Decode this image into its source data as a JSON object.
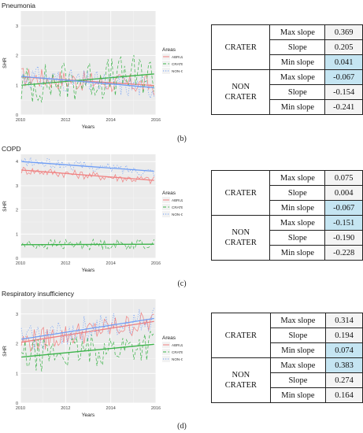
{
  "chart_data": [
    {
      "type": "line",
      "title": "Pneumonia",
      "xlabel": "Years",
      "ylabel": "SHR",
      "xlim": [
        2010,
        2016
      ],
      "ylim": [
        0,
        3.5
      ],
      "xticks": [
        2010,
        2012,
        2014,
        2016
      ],
      "yticks": [
        0,
        1,
        2,
        3
      ],
      "legend_title": "Areas",
      "legend_position": "right",
      "series": [
        {
          "name": "ABRUZZO",
          "color": "#f08080",
          "dash": "solid",
          "trend": [
            1.28,
            0.99
          ]
        },
        {
          "name": "CRATER",
          "color": "#3cb34a",
          "dash": "dashed",
          "trend": [
            1.0,
            1.38
          ]
        },
        {
          "name": "NON-CRATER",
          "color": "#6f9ef5",
          "dash": "dotted",
          "trend": [
            1.3,
            0.92
          ]
        }
      ]
    },
    {
      "type": "line",
      "title": "COPD",
      "xlabel": "Years",
      "ylabel": "SHR",
      "xlim": [
        2010,
        2016
      ],
      "ylim": [
        0,
        4.3
      ],
      "xticks": [
        2010,
        2012,
        2014,
        2016
      ],
      "yticks": [
        0,
        1,
        2,
        3,
        4
      ],
      "legend_title": "Areas",
      "legend_position": "right",
      "series": [
        {
          "name": "ABRUZZO",
          "color": "#f08080",
          "dash": "solid",
          "trend": [
            3.65,
            3.22
          ]
        },
        {
          "name": "CRATER",
          "color": "#3cb34a",
          "dash": "dashed",
          "trend": [
            0.56,
            0.58
          ]
        },
        {
          "name": "NON-CRATER",
          "color": "#6f9ef5",
          "dash": "dotted",
          "trend": [
            4.0,
            3.6
          ]
        }
      ]
    },
    {
      "type": "line",
      "title": "Respiratory insufficiency",
      "xlabel": "Years",
      "ylabel": "SHR",
      "xlim": [
        2010,
        2016
      ],
      "ylim": [
        0,
        3.5
      ],
      "xticks": [
        2010,
        2012,
        2014,
        2016
      ],
      "yticks": [
        0,
        1,
        2,
        3
      ],
      "legend_title": "Areas",
      "legend_position": "right",
      "series": [
        {
          "name": "ABRUZZO",
          "color": "#f08080",
          "dash": "solid",
          "trend": [
            2.05,
            2.75
          ]
        },
        {
          "name": "CRATER",
          "color": "#3cb34a",
          "dash": "dashed",
          "trend": [
            1.55,
            1.98
          ]
        },
        {
          "name": "NON-CRATER",
          "color": "#6f9ef5",
          "dash": "dotted",
          "trend": [
            2.15,
            2.85
          ]
        }
      ]
    }
  ],
  "tables": [
    {
      "panel": "(b)",
      "groups": [
        {
          "area": [
            "CRATER"
          ],
          "rows": [
            {
              "label": "Max slope",
              "value": "0.369",
              "highlight": false
            },
            {
              "label": "Slope",
              "value": "0.205",
              "highlight": false
            },
            {
              "label": "Min slope",
              "value": "0.041",
              "highlight": true
            }
          ]
        },
        {
          "area": [
            "NON",
            "CRATER"
          ],
          "rows": [
            {
              "label": "Max slope",
              "value": "-0.067",
              "highlight": true
            },
            {
              "label": "Slope",
              "value": "-0.154",
              "highlight": false
            },
            {
              "label": "Min slope",
              "value": "-0.241",
              "highlight": false
            }
          ]
        }
      ]
    },
    {
      "panel": "(c)",
      "groups": [
        {
          "area": [
            "CRATER"
          ],
          "rows": [
            {
              "label": "Max slope",
              "value": "0.075",
              "highlight": false
            },
            {
              "label": "Slope",
              "value": "0.004",
              "highlight": false
            },
            {
              "label": "Min slope",
              "value": "-0.067",
              "highlight": true
            }
          ]
        },
        {
          "area": [
            "NON",
            "CRATER"
          ],
          "rows": [
            {
              "label": "Max slope",
              "value": "-0.151",
              "highlight": true
            },
            {
              "label": "Slope",
              "value": "-0.190",
              "highlight": false
            },
            {
              "label": "Min slope",
              "value": "-0.228",
              "highlight": false
            }
          ]
        }
      ]
    },
    {
      "panel": "(d)",
      "groups": [
        {
          "area": [
            "CRATER"
          ],
          "rows": [
            {
              "label": "Max slope",
              "value": "0.314",
              "highlight": false
            },
            {
              "label": "Slope",
              "value": "0.194",
              "highlight": false
            },
            {
              "label": "Min slope",
              "value": "0.074",
              "highlight": true
            }
          ]
        },
        {
          "area": [
            "NON",
            "CRATER"
          ],
          "rows": [
            {
              "label": "Max slope",
              "value": "0.383",
              "highlight": true
            },
            {
              "label": "Slope",
              "value": "0.274",
              "highlight": false
            },
            {
              "label": "Min slope",
              "value": "0.164",
              "highlight": false
            }
          ]
        }
      ]
    }
  ]
}
